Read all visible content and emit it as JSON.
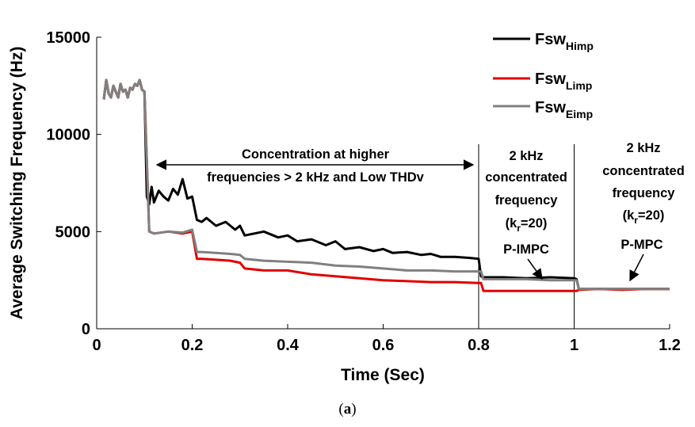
{
  "chart_data": {
    "type": "line",
    "xlabel": "Time (Sec)",
    "ylabel": "Average Switching Frequency (Hz)",
    "xlim": [
      0,
      1.2
    ],
    "ylim": [
      0,
      15000
    ],
    "xticks": [
      0,
      0.2,
      0.4,
      0.6,
      0.8,
      1,
      1.2
    ],
    "xtick_labels": [
      "0",
      "0.2",
      "0.4",
      "0.6",
      "0.8",
      "1",
      "1.2"
    ],
    "yticks": [
      0,
      5000,
      10000,
      15000
    ],
    "ytick_labels": [
      "0",
      "5000",
      "10000",
      "15000"
    ],
    "grid": false,
    "legend_position": "top-right",
    "series": [
      {
        "name_main": "Fsw",
        "name_sub": "Himp",
        "color": "#000000",
        "x": [
          0.015,
          0.02,
          0.025,
          0.03,
          0.035,
          0.04,
          0.045,
          0.05,
          0.055,
          0.06,
          0.065,
          0.07,
          0.075,
          0.08,
          0.085,
          0.09,
          0.095,
          0.1,
          0.105,
          0.11,
          0.115,
          0.12,
          0.13,
          0.14,
          0.15,
          0.16,
          0.17,
          0.18,
          0.19,
          0.2,
          0.21,
          0.22,
          0.23,
          0.25,
          0.27,
          0.29,
          0.3,
          0.31,
          0.33,
          0.35,
          0.38,
          0.4,
          0.42,
          0.45,
          0.48,
          0.5,
          0.52,
          0.55,
          0.58,
          0.6,
          0.62,
          0.65,
          0.68,
          0.7,
          0.72,
          0.75,
          0.78,
          0.8,
          0.805,
          0.81,
          0.85,
          0.9,
          0.95,
          1.0,
          1.005,
          1.01,
          1.05,
          1.1,
          1.15,
          1.2
        ],
        "y": [
          11800,
          12800,
          12100,
          11900,
          12500,
          12200,
          11900,
          12600,
          12200,
          12300,
          11900,
          12400,
          12300,
          12600,
          12500,
          12800,
          12300,
          12200,
          6800,
          6400,
          7300,
          6500,
          7100,
          6800,
          6600,
          7200,
          6900,
          7700,
          6700,
          6800,
          5600,
          5500,
          5700,
          5300,
          5500,
          5100,
          5300,
          4800,
          4900,
          5000,
          4700,
          4800,
          4500,
          4600,
          4300,
          4500,
          4100,
          4200,
          4000,
          4100,
          3900,
          3950,
          3800,
          3850,
          3700,
          3700,
          3650,
          3600,
          2700,
          2650,
          2650,
          2600,
          2650,
          2600,
          2550,
          2050,
          2050,
          2050,
          2050,
          2050
        ]
      },
      {
        "name_main": "Fsw",
        "name_sub": "Limp",
        "color": "#e00000",
        "x": [
          0.015,
          0.02,
          0.025,
          0.03,
          0.035,
          0.04,
          0.045,
          0.05,
          0.055,
          0.06,
          0.065,
          0.07,
          0.075,
          0.08,
          0.085,
          0.09,
          0.095,
          0.1,
          0.11,
          0.12,
          0.15,
          0.18,
          0.2,
          0.21,
          0.22,
          0.25,
          0.28,
          0.3,
          0.31,
          0.35,
          0.4,
          0.45,
          0.5,
          0.55,
          0.6,
          0.65,
          0.7,
          0.75,
          0.8,
          0.805,
          0.81,
          0.85,
          0.9,
          0.95,
          1.0,
          1.005,
          1.01,
          1.05,
          1.1,
          1.15,
          1.2
        ],
        "y": [
          11800,
          12800,
          12100,
          11900,
          12500,
          12200,
          11900,
          12600,
          12200,
          12300,
          11900,
          12400,
          12300,
          12600,
          12500,
          12800,
          12300,
          12200,
          5000,
          4900,
          5000,
          4900,
          5000,
          3600,
          3600,
          3550,
          3500,
          3400,
          3100,
          3000,
          3000,
          2800,
          2700,
          2600,
          2500,
          2450,
          2400,
          2400,
          2350,
          2350,
          1950,
          1950,
          1950,
          1950,
          1950,
          1950,
          2000,
          2050,
          2000,
          2050,
          2050
        ]
      },
      {
        "name_main": "Fsw",
        "name_sub": "Eimp",
        "color": "#808080",
        "x": [
          0.015,
          0.02,
          0.025,
          0.03,
          0.035,
          0.04,
          0.045,
          0.05,
          0.055,
          0.06,
          0.065,
          0.07,
          0.075,
          0.08,
          0.085,
          0.09,
          0.095,
          0.1,
          0.11,
          0.12,
          0.15,
          0.18,
          0.2,
          0.21,
          0.22,
          0.25,
          0.28,
          0.3,
          0.31,
          0.35,
          0.4,
          0.45,
          0.5,
          0.55,
          0.6,
          0.65,
          0.7,
          0.75,
          0.8,
          0.805,
          0.81,
          0.85,
          0.9,
          0.95,
          1.0,
          1.005,
          1.01,
          1.05,
          1.1,
          1.15,
          1.2
        ],
        "y": [
          11800,
          12800,
          12100,
          11900,
          12500,
          12200,
          11900,
          12600,
          12200,
          12300,
          11900,
          12400,
          12300,
          12600,
          12500,
          12800,
          12300,
          12200,
          5000,
          4900,
          5000,
          4950,
          5100,
          3950,
          3950,
          3900,
          3850,
          3800,
          3600,
          3500,
          3450,
          3400,
          3250,
          3200,
          3100,
          3000,
          3000,
          2950,
          2950,
          2950,
          2550,
          2550,
          2550,
          2500,
          2500,
          2500,
          2050,
          2050,
          2050,
          2050,
          2050
        ]
      }
    ],
    "vlines": [
      0.8,
      1.0
    ],
    "annotations": {
      "concentration_line1": "Concentration at higher",
      "concentration_line2": "frequencies > 2 kHz and Low THDv",
      "mid_line1": "2 kHz",
      "mid_line2": "concentrated",
      "mid_line3": "frequency",
      "mid_kr_main": "(k",
      "mid_kr_sub": "r",
      "mid_kr_tail": "=20)",
      "mid_label": "P-IMPC",
      "right_line1": "2 kHz",
      "right_line2": "concentrated",
      "right_line3": "frequency",
      "right_kr_main": "(k",
      "right_kr_sub": "r",
      "right_kr_tail": "=20)",
      "right_label": "P-MPC"
    }
  },
  "caption": {
    "open": "(",
    "letter": "a",
    "close": ")"
  }
}
